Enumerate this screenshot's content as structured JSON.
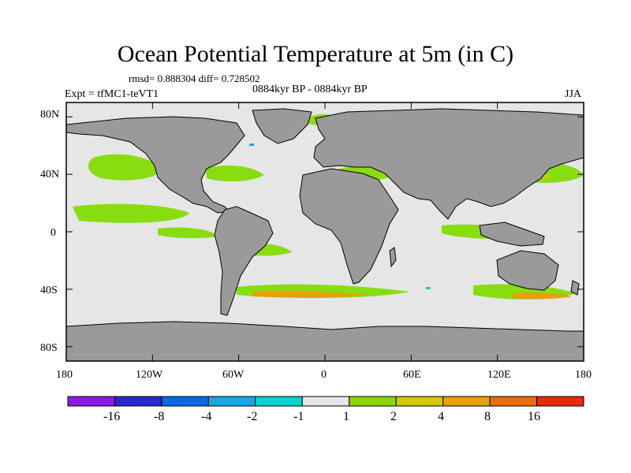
{
  "title": "Ocean Potential Temperature at 5m (in C)",
  "stats": "rmsd= 0.888304 diff= 0.728502",
  "expt": "Expt = tfMC1-teVT1",
  "period": "0884kyr BP - 0884kyr BP",
  "season": "JJA",
  "map": {
    "lat_ticks": [
      "80N",
      "40N",
      "0",
      "40S",
      "80S"
    ],
    "lat_values": [
      80,
      40,
      0,
      -40,
      -80
    ],
    "lon_ticks": [
      "180",
      "120W",
      "60W",
      "0",
      "60E",
      "120E",
      "180"
    ],
    "lon_values": [
      -180,
      -120,
      -60,
      0,
      60,
      120,
      180
    ],
    "land_color": "#9a9a9a",
    "ocean_neutral_color": "#e6e6e6",
    "anomaly_warm_color": "#88dd11"
  },
  "colorbar": {
    "labels": [
      "-16",
      "-8",
      "-4",
      "-2",
      "-1",
      "1",
      "2",
      "4",
      "8",
      "16"
    ],
    "colors": [
      "#8a1ae6",
      "#2828cf",
      "#0a6ae0",
      "#18a6e6",
      "#0ed2d2",
      "#e6e6e6",
      "#8ad40a",
      "#d2c80a",
      "#e6a00a",
      "#e66e0a",
      "#e62a0a"
    ]
  }
}
